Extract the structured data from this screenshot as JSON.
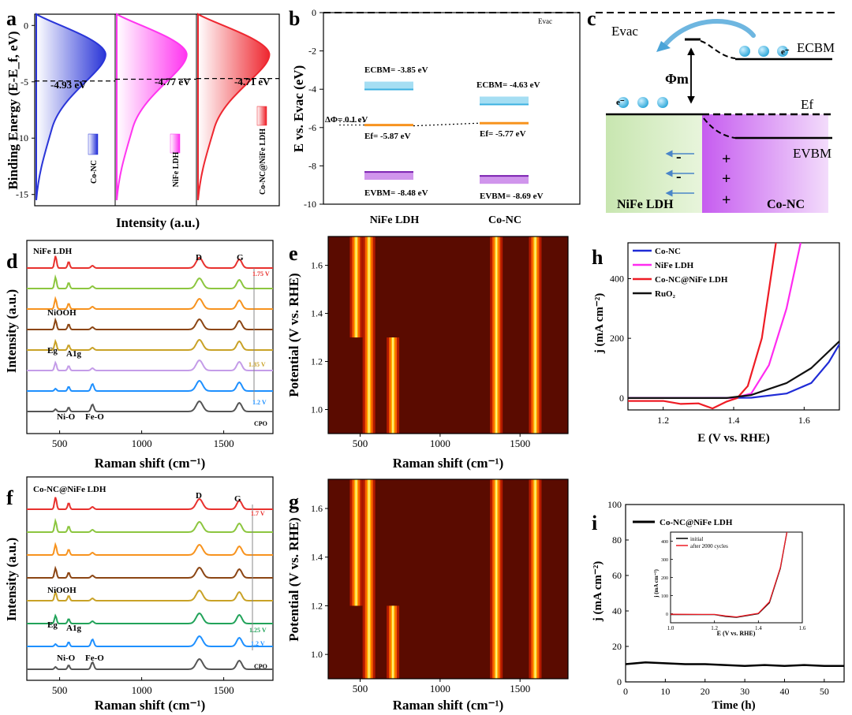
{
  "panel_labels": {
    "a": "a",
    "b": "b",
    "c": "c",
    "d": "d",
    "e": "e",
    "f": "f",
    "g": "g",
    "h": "h",
    "i": "i"
  },
  "colors": {
    "co_nc": "#1f2bd6",
    "nife": "#ff2bf0",
    "conc_nife": "#ee1c25",
    "ruo2": "#111111",
    "cbm": "#7fd0ee",
    "ef": "#f7931e",
    "vbm": "#b04fe0",
    "heat_bg": "#5a0b00",
    "heat_hot": "#ffd400"
  },
  "chart_data": [
    {
      "panel": "a",
      "type": "area",
      "ylabel": "Binding Energy (E-E_f, eV)",
      "xlabel": "Intensity (a.u.)",
      "ylim": [
        -16,
        1
      ],
      "yticks": [
        0,
        -5,
        -10,
        -15
      ],
      "series": [
        {
          "name": "Co-NC",
          "annotation": "-4.93 eV",
          "value": -4.93
        },
        {
          "name": "NiFe LDH",
          "annotation": "-4.77 eV",
          "value": -4.77
        },
        {
          "name": "Co-NC@NiFe LDH",
          "annotation": "-4.71 eV",
          "value": -4.71
        }
      ]
    },
    {
      "panel": "b",
      "type": "table",
      "ylabel": "E vs. Evac (eV)",
      "ylim": [
        -10,
        0
      ],
      "yticks": [
        0,
        -2,
        -4,
        -6,
        -8,
        -10
      ],
      "categories": [
        "NiFe LDH",
        "Co-NC"
      ],
      "evac_label": "Evac",
      "delta_phi": "ΔΦ= 0.1 eV",
      "levels": [
        {
          "material": "NiFe LDH",
          "cbm": -3.85,
          "ef": -5.87,
          "vbm": -8.48,
          "cbm_label": "ECBM= -3.85 eV",
          "ef_label": "Ef= -5.87 eV",
          "vbm_label": "EVBM= -8.48 eV"
        },
        {
          "material": "Co-NC",
          "cbm": -4.63,
          "ef": -5.77,
          "vbm": -8.69,
          "cbm_label": "ECBM= -4.63 eV",
          "ef_label": "Ef= -5.77 eV",
          "vbm_label": "EVBM= -8.69 eV"
        }
      ]
    },
    {
      "panel": "d",
      "type": "line",
      "xlabel": "Raman shift (cm⁻¹)",
      "ylabel": "Intensity (a.u.)",
      "xlim": [
        300,
        1800
      ],
      "xticks": [
        500,
        1000,
        1500
      ],
      "title": "NiFe LDH",
      "peak_labels": [
        "D",
        "G",
        "NiOOH",
        "Eg",
        "A1g",
        "Ni-O",
        "Fe-O"
      ],
      "potential_labels": [
        "1.75 V",
        "1.35 V",
        "1.2 V",
        "CPO"
      ],
      "series_colors": [
        "#e8312e",
        "#8cc63f",
        "#f7931e",
        "#8b4513",
        "#c9a227",
        "#c49ce8",
        "#1e90ff",
        "#555555"
      ]
    },
    {
      "panel": "e",
      "type": "heatmap",
      "xlabel": "Raman shift (cm⁻¹)",
      "ylabel": "Potential (V vs. RHE)",
      "xlim": [
        300,
        1800
      ],
      "ylim": [
        0.9,
        1.72
      ],
      "xticks": [
        500,
        1000,
        1500
      ],
      "yticks": [
        1.0,
        1.2,
        1.4,
        1.6
      ],
      "bands": [
        {
          "center": 475,
          "from_potential": 1.3
        },
        {
          "center": 555,
          "from_potential": 0.9
        },
        {
          "center": 705,
          "from_potential": 0.9,
          "to_potential": 1.3
        },
        {
          "center": 1352,
          "from_potential": 0.9
        },
        {
          "center": 1595,
          "from_potential": 0.9
        }
      ]
    },
    {
      "panel": "f",
      "type": "line",
      "xlabel": "Raman shift (cm⁻¹)",
      "ylabel": "Intensity (a.u.)",
      "xlim": [
        300,
        1800
      ],
      "xticks": [
        500,
        1000,
        1500
      ],
      "title": "Co-NC@NiFe LDH",
      "peak_labels": [
        "D",
        "G",
        "NiOOH",
        "Eg",
        "A1g",
        "Ni-O",
        "Fe-O"
      ],
      "potential_labels": [
        "1.7 V",
        "1.25 V",
        "1.2 V",
        "CPO"
      ],
      "series_colors": [
        "#e8312e",
        "#8cc63f",
        "#f7931e",
        "#8b4513",
        "#c9a227",
        "#22a35a",
        "#1e90ff",
        "#555555"
      ]
    },
    {
      "panel": "g",
      "type": "heatmap",
      "xlabel": "Raman shift (cm⁻¹)",
      "ylabel": "Potential (V vs. RHE)",
      "xlim": [
        300,
        1800
      ],
      "ylim": [
        0.9,
        1.72
      ],
      "xticks": [
        500,
        1000,
        1500
      ],
      "yticks": [
        1.0,
        1.2,
        1.4,
        1.6
      ],
      "bands": [
        {
          "center": 475,
          "from_potential": 1.2
        },
        {
          "center": 555,
          "from_potential": 0.9
        },
        {
          "center": 705,
          "from_potential": 0.9,
          "to_potential": 1.2
        },
        {
          "center": 1352,
          "from_potential": 0.9
        },
        {
          "center": 1595,
          "from_potential": 0.9
        }
      ]
    },
    {
      "panel": "h",
      "type": "line",
      "xlabel": "E (V vs. RHE)",
      "ylabel": "j (mA cm⁻²)",
      "xlim": [
        1.1,
        1.7
      ],
      "ylim": [
        -40,
        520
      ],
      "xticks": [
        1.2,
        1.4,
        1.6
      ],
      "yticks": [
        0,
        200,
        400
      ],
      "series": [
        {
          "name": "Co-NC",
          "x": [
            1.1,
            1.3,
            1.45,
            1.55,
            1.62,
            1.67,
            1.7
          ],
          "y": [
            0,
            0,
            1,
            15,
            50,
            120,
            180
          ]
        },
        {
          "name": "NiFe LDH",
          "x": [
            1.1,
            1.4,
            1.45,
            1.5,
            1.55,
            1.59
          ],
          "y": [
            0,
            0,
            15,
            110,
            300,
            520
          ]
        },
        {
          "name": "Co-NC@NiFe LDH",
          "x": [
            1.1,
            1.2,
            1.25,
            1.3,
            1.34,
            1.38,
            1.41,
            1.44,
            1.48,
            1.52
          ],
          "y": [
            -10,
            -10,
            -20,
            -18,
            -35,
            -12,
            0,
            40,
            200,
            520
          ]
        },
        {
          "name": "RuO₂",
          "x": [
            1.1,
            1.38,
            1.45,
            1.55,
            1.62,
            1.7
          ],
          "y": [
            0,
            0,
            10,
            50,
            100,
            190
          ]
        }
      ]
    },
    {
      "panel": "i",
      "type": "line",
      "xlabel": "Time (h)",
      "ylabel": "j (mA cm⁻²)",
      "xlim": [
        0,
        55
      ],
      "ylim": [
        0,
        100
      ],
      "xticks": [
        0,
        10,
        20,
        30,
        40,
        50
      ],
      "yticks": [
        0,
        20,
        40,
        60,
        80,
        100
      ],
      "series": [
        {
          "name": "Co-NC@NiFe LDH",
          "x": [
            0,
            5,
            10,
            15,
            20,
            25,
            30,
            35,
            40,
            45,
            50,
            55
          ],
          "y": [
            10,
            11,
            10.5,
            10,
            10,
            9.5,
            9,
            9.5,
            9,
            9.5,
            9,
            9
          ]
        }
      ],
      "inset": {
        "xlabel": "E (V vs. RHE)",
        "ylabel": "j (mA cm⁻²)",
        "xlim": [
          1.0,
          1.6
        ],
        "ylim": [
          -50,
          450
        ],
        "xticks": [
          1.0,
          1.2,
          1.4,
          1.6
        ],
        "yticks": [
          0,
          100,
          200,
          300,
          400
        ],
        "series": [
          {
            "name": "initial",
            "x": [
              1.0,
              1.2,
              1.25,
              1.3,
              1.35,
              1.4,
              1.45,
              1.5,
              1.53
            ],
            "y": [
              -5,
              -5,
              -15,
              -20,
              -10,
              0,
              60,
              250,
              450
            ]
          },
          {
            "name": "after 2000 cycles",
            "x": [
              1.0,
              1.2,
              1.25,
              1.3,
              1.35,
              1.4,
              1.45,
              1.5,
              1.53
            ],
            "y": [
              -3,
              -4,
              -12,
              -18,
              -8,
              2,
              65,
              255,
              450
            ]
          }
        ]
      }
    }
  ],
  "text": {
    "c_evac": "Evac",
    "c_ecbm": "ECBM",
    "c_phim": "Φm",
    "c_ef": "Ef",
    "c_evbm": "EVBM",
    "c_electron": "e⁻",
    "c_left": "NiFe LDH",
    "c_right": "Co-NC",
    "c_minus": "-",
    "c_plus": "+",
    "h_leg": [
      "Co-NC",
      "NiFe LDH",
      "Co-NC@NiFe LDH",
      "RuO₂"
    ],
    "i_leg": "Co-NC@NiFe LDH",
    "i_inset_leg": [
      "initial",
      "after 2000 cycles"
    ]
  }
}
